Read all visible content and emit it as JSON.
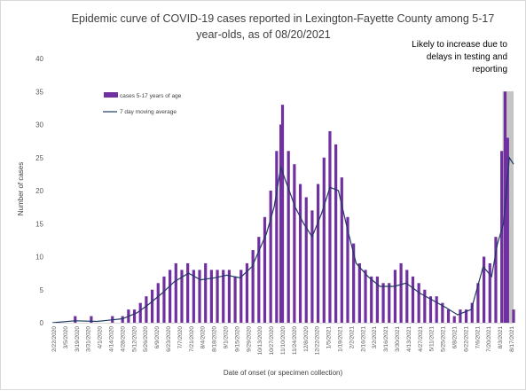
{
  "chart_data": {
    "type": "bar",
    "title_lines": [
      "Epidemic curve of COVID-19 cases reported in Lexington-Fayette County among 5-17",
      "year-olds, as of 08/20/2021"
    ],
    "xlabel": "Date of onset (or specimen collection)",
    "ylabel": "Number of cases",
    "ylim": [
      0,
      40
    ],
    "yticks": [
      0,
      5,
      10,
      15,
      20,
      25,
      30,
      35,
      40
    ],
    "grid": false,
    "legend_position": "top-left",
    "x_start": "2020-02-22",
    "x_end": "2021-08-20",
    "x_tick_labels": [
      "2/22/2020",
      "3/5/2020",
      "3/19/2020",
      "3/31/2020",
      "4/1/2020",
      "4/14/2020",
      "4/28/2020",
      "5/12/2020",
      "5/26/2020",
      "6/9/2020",
      "6/23/2020",
      "7/7/2020",
      "7/21/2020",
      "8/4/2020",
      "8/18/2020",
      "9/1/2020",
      "9/15/2020",
      "9/29/2020",
      "10/13/2020",
      "10/27/2020",
      "11/10/2020",
      "11/24/2020",
      "12/8/2020",
      "12/22/2020",
      "1/5/2021",
      "1/19/2021",
      "2/2/2021",
      "2/16/2021",
      "3/2/2021",
      "3/16/2021",
      "3/30/2021",
      "4/13/2021",
      "4/27/2021",
      "5/11/2021",
      "5/25/2021",
      "6/8/2021",
      "6/22/2021",
      "7/6/2021",
      "7/20/2021",
      "8/3/2021",
      "8/17/2021"
    ],
    "shaded_region": {
      "start": "2021-08-07",
      "end": "2021-08-20",
      "annotation_lines": [
        "Likely to increase due to",
        "delays in testing and",
        "reporting"
      ]
    },
    "series": [
      {
        "name": "cases 5-17 years of age",
        "kind": "bar",
        "color": "#7030a0",
        "points": [
          [
            "2020-03-20",
            1
          ],
          [
            "2020-04-08",
            1
          ],
          [
            "2020-05-03",
            1
          ],
          [
            "2020-05-15",
            1
          ],
          [
            "2020-05-22",
            2
          ],
          [
            "2020-05-29",
            2
          ],
          [
            "2020-06-05",
            3
          ],
          [
            "2020-06-12",
            4
          ],
          [
            "2020-06-19",
            5
          ],
          [
            "2020-06-26",
            6
          ],
          [
            "2020-07-03",
            7
          ],
          [
            "2020-07-10",
            8
          ],
          [
            "2020-07-17",
            9
          ],
          [
            "2020-07-24",
            8
          ],
          [
            "2020-07-31",
            9
          ],
          [
            "2020-08-07",
            8
          ],
          [
            "2020-08-14",
            8
          ],
          [
            "2020-08-21",
            9
          ],
          [
            "2020-08-28",
            8
          ],
          [
            "2020-09-04",
            8
          ],
          [
            "2020-09-11",
            8
          ],
          [
            "2020-09-18",
            8
          ],
          [
            "2020-09-25",
            7
          ],
          [
            "2020-10-02",
            8
          ],
          [
            "2020-10-09",
            9
          ],
          [
            "2020-10-16",
            11
          ],
          [
            "2020-10-23",
            13
          ],
          [
            "2020-10-30",
            16
          ],
          [
            "2020-11-06",
            20
          ],
          [
            "2020-11-13",
            26
          ],
          [
            "2020-11-18",
            30
          ],
          [
            "2020-11-20",
            33
          ],
          [
            "2020-11-27",
            26
          ],
          [
            "2020-12-04",
            24
          ],
          [
            "2020-12-11",
            21
          ],
          [
            "2020-12-18",
            19
          ],
          [
            "2020-12-25",
            17
          ],
          [
            "2021-01-01",
            21
          ],
          [
            "2021-01-08",
            25
          ],
          [
            "2021-01-15",
            29
          ],
          [
            "2021-01-22",
            27
          ],
          [
            "2021-01-29",
            22
          ],
          [
            "2021-02-05",
            16
          ],
          [
            "2021-02-12",
            12
          ],
          [
            "2021-02-19",
            9
          ],
          [
            "2021-02-26",
            8
          ],
          [
            "2021-03-05",
            7
          ],
          [
            "2021-03-12",
            7
          ],
          [
            "2021-03-19",
            6
          ],
          [
            "2021-03-26",
            6
          ],
          [
            "2021-04-02",
            8
          ],
          [
            "2021-04-09",
            9
          ],
          [
            "2021-04-16",
            8
          ],
          [
            "2021-04-23",
            7
          ],
          [
            "2021-04-30",
            6
          ],
          [
            "2021-05-07",
            5
          ],
          [
            "2021-05-14",
            4
          ],
          [
            "2021-05-21",
            4
          ],
          [
            "2021-05-28",
            3
          ],
          [
            "2021-06-04",
            2
          ],
          [
            "2021-06-11",
            1
          ],
          [
            "2021-06-18",
            2
          ],
          [
            "2021-06-25",
            2
          ],
          [
            "2021-07-02",
            3
          ],
          [
            "2021-07-09",
            6
          ],
          [
            "2021-07-16",
            10
          ],
          [
            "2021-07-23",
            9
          ],
          [
            "2021-07-30",
            13
          ],
          [
            "2021-08-06",
            26
          ],
          [
            "2021-08-10",
            35
          ],
          [
            "2021-08-13",
            28
          ],
          [
            "2021-08-20",
            2
          ]
        ]
      },
      {
        "name": "7 day moving average",
        "kind": "line",
        "color": "#1f3864",
        "points": [
          [
            "2020-02-22",
            0
          ],
          [
            "2020-03-20",
            0.3
          ],
          [
            "2020-04-15",
            0.2
          ],
          [
            "2020-05-15",
            0.6
          ],
          [
            "2020-06-01",
            1.5
          ],
          [
            "2020-06-15",
            2.8
          ],
          [
            "2020-07-01",
            4.5
          ],
          [
            "2020-07-15",
            6.2
          ],
          [
            "2020-08-01",
            7.5
          ],
          [
            "2020-08-15",
            6.5
          ],
          [
            "2020-09-01",
            6.8
          ],
          [
            "2020-09-15",
            7.2
          ],
          [
            "2020-10-01",
            6.8
          ],
          [
            "2020-10-15",
            8.5
          ],
          [
            "2020-11-01",
            13.5
          ],
          [
            "2020-11-10",
            17.5
          ],
          [
            "2020-11-18",
            23.5
          ],
          [
            "2020-11-25",
            21
          ],
          [
            "2020-12-05",
            17.5
          ],
          [
            "2020-12-15",
            15
          ],
          [
            "2020-12-25",
            13
          ],
          [
            "2021-01-05",
            16.5
          ],
          [
            "2021-01-15",
            20.5
          ],
          [
            "2021-01-25",
            20
          ],
          [
            "2021-02-05",
            14
          ],
          [
            "2021-02-15",
            9
          ],
          [
            "2021-03-01",
            7
          ],
          [
            "2021-03-15",
            5.5
          ],
          [
            "2021-04-01",
            5.5
          ],
          [
            "2021-04-15",
            6
          ],
          [
            "2021-05-01",
            4.5
          ],
          [
            "2021-05-15",
            3.5
          ],
          [
            "2021-06-01",
            2.3
          ],
          [
            "2021-06-15",
            1.2
          ],
          [
            "2021-07-01",
            2
          ],
          [
            "2021-07-15",
            8.5
          ],
          [
            "2021-07-25",
            7
          ],
          [
            "2021-08-01",
            12
          ],
          [
            "2021-08-08",
            15
          ],
          [
            "2021-08-15",
            25
          ],
          [
            "2021-08-20",
            24
          ]
        ]
      }
    ]
  }
}
